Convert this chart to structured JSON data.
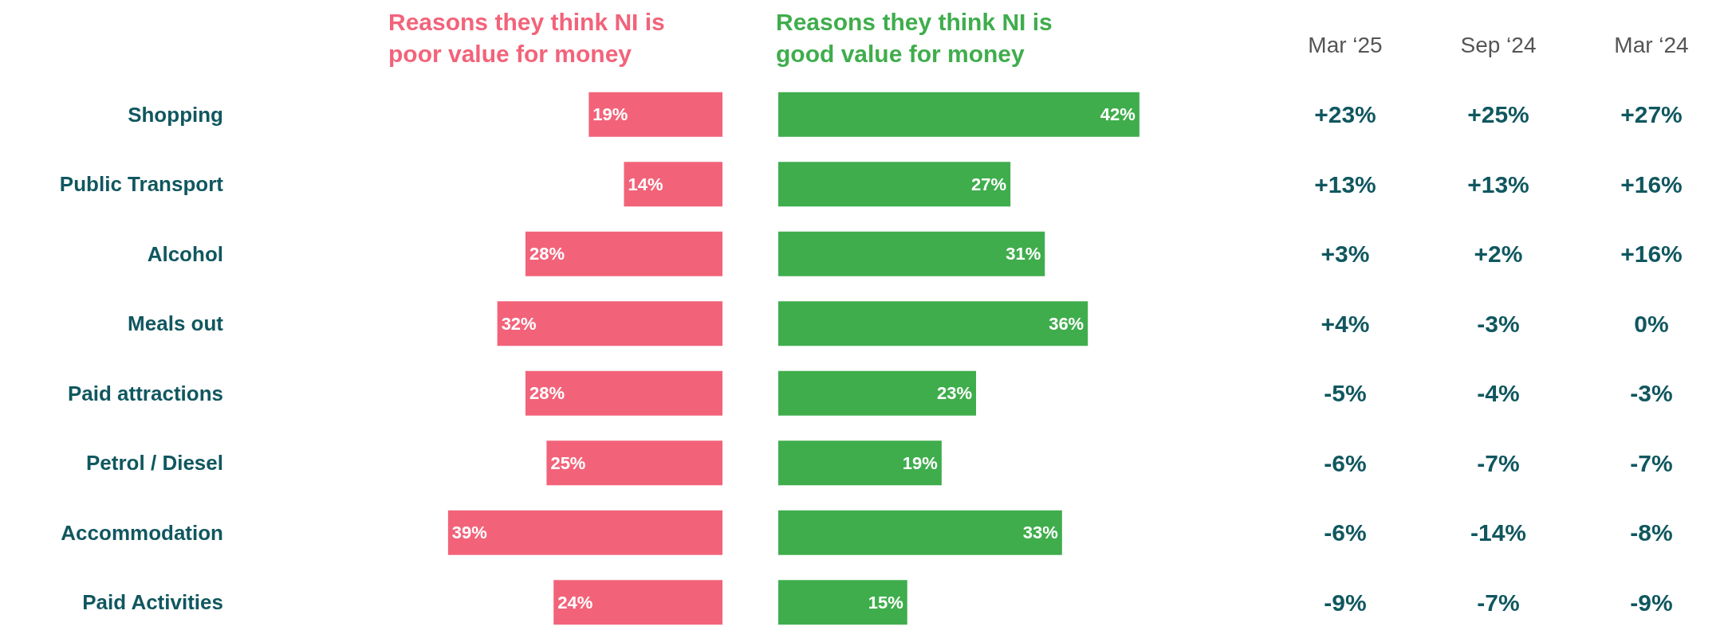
{
  "chart_data": [
    {
      "type": "bar",
      "orientation": "horizontal",
      "title": "Reasons they think NI is poor value for money",
      "categories": [
        "Shopping",
        "Public Transport",
        "Alcohol",
        "Meals out",
        "Paid attractions",
        "Petrol / Diesel",
        "Accommodation",
        "Paid Activities"
      ],
      "tick_labels": "y",
      "series": [
        {
          "color": "#f2637a",
          "values": [
            19,
            14,
            28,
            32,
            28,
            25,
            39,
            24
          ],
          "value_labels": [
            "19%",
            "14%",
            "28%",
            "32%",
            "28%",
            "25%",
            "39%",
            "24%"
          ]
        }
      ]
    },
    {
      "type": "bar",
      "orientation": "horizontal",
      "title": "Reasons they think NI is good value for money",
      "tick_labels": false,
      "series": [
        {
          "color": "#3fad4c",
          "values": [
            42,
            27,
            31,
            36,
            23,
            19,
            33,
            15
          ],
          "value_labels": [
            "42%",
            "27%",
            "31%",
            "36%",
            "23%",
            "19%",
            "33%",
            "15%"
          ]
        }
      ]
    },
    {
      "type": "other",
      "categories": [
        "Mar ‘25",
        "Sep ‘24",
        "Mar ‘24"
      ],
      "cell_labels": [
        [
          "+23%",
          "+25%",
          "+27%"
        ],
        [
          "+13%",
          "+13%",
          "+16%"
        ],
        [
          "+3%",
          "+2%",
          "+16%"
        ],
        [
          "+4%",
          "-3%",
          "0%"
        ],
        [
          "-5%",
          "-4%",
          "-3%"
        ],
        [
          "-6%",
          "-7%",
          "-7%"
        ],
        [
          "-6%",
          "-14%",
          "-8%"
        ],
        [
          "-9%",
          "-7%",
          "-9%"
        ]
      ]
    }
  ]
}
